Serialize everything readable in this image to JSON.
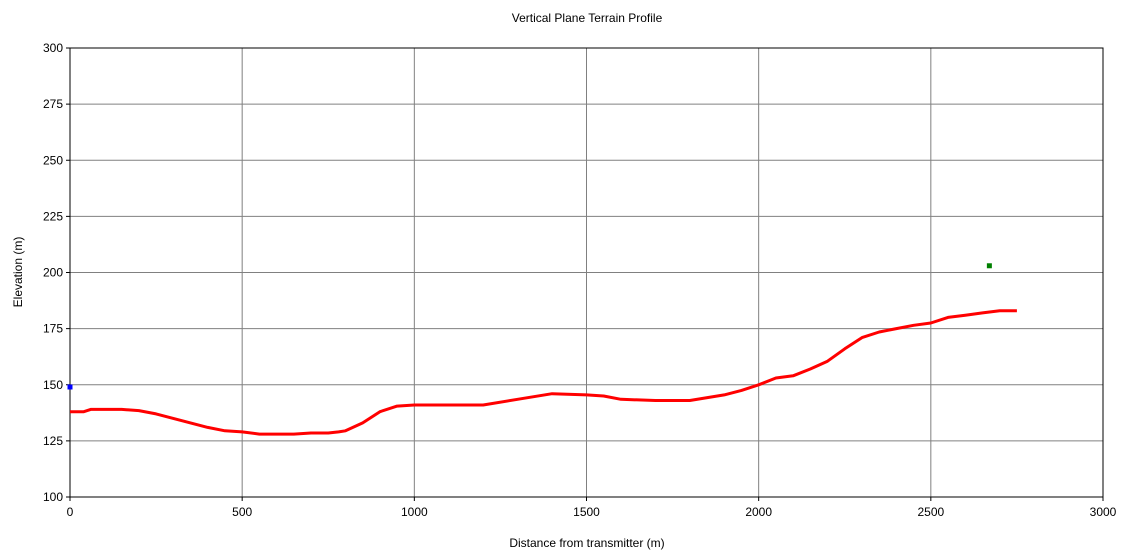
{
  "chart_data": {
    "type": "line",
    "title": "Vertical Plane Terrain Profile",
    "xlabel": "Distance from transmitter (m)",
    "ylabel": "Elevation (m)",
    "xlim": [
      0,
      3000
    ],
    "ylim": [
      100,
      300
    ],
    "xticks": [
      "0",
      "500",
      "1000",
      "1500",
      "2000",
      "2500",
      "3000"
    ],
    "yticks": [
      "100",
      "125",
      "150",
      "175",
      "200",
      "225",
      "250",
      "275",
      "300"
    ],
    "grid": true,
    "series": [
      {
        "color": "#ff0000",
        "x": [
          0,
          20,
          40,
          60,
          100,
          150,
          200,
          250,
          300,
          350,
          400,
          450,
          500,
          550,
          600,
          650,
          700,
          750,
          780,
          800,
          850,
          900,
          950,
          1000,
          1100,
          1200,
          1300,
          1400,
          1500,
          1550,
          1600,
          1700,
          1800,
          1900,
          1950,
          2000,
          2050,
          2100,
          2150,
          2200,
          2250,
          2300,
          2350,
          2400,
          2450,
          2500,
          2550,
          2600,
          2650,
          2700,
          2750
        ],
        "y": [
          138,
          138,
          138,
          139,
          139,
          139,
          138.5,
          137,
          135,
          133,
          131,
          129.5,
          129,
          128,
          128,
          128,
          128.5,
          128.5,
          129,
          129.5,
          133,
          138,
          140.5,
          141,
          141,
          141,
          143.5,
          146,
          145.5,
          145,
          143.5,
          143,
          143,
          145.5,
          147.5,
          150,
          153,
          154,
          157,
          160.5,
          166,
          171,
          173.5,
          175,
          176.5,
          177.5,
          180,
          181,
          182,
          183,
          183
        ]
      }
    ],
    "points": [
      {
        "x": 0,
        "y": 149,
        "color": "#0000ff"
      },
      {
        "x": 2670,
        "y": 203,
        "color": "#008000"
      }
    ]
  }
}
